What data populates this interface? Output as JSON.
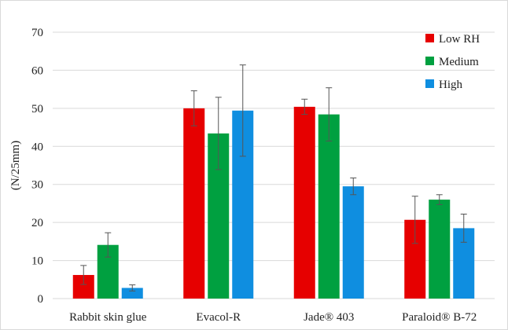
{
  "chart_data": {
    "type": "bar",
    "title": "",
    "xlabel": "",
    "ylabel": "(N/25mm)",
    "ylim": [
      0,
      70
    ],
    "yticks": [
      0,
      10,
      20,
      30,
      40,
      50,
      60,
      70
    ],
    "grid": true,
    "legend_position": "top-right",
    "categories": [
      "Rabbit skin glue",
      "Evacol-R",
      "Jade® 403",
      "Paraloid® B-72"
    ],
    "series": [
      {
        "name": "Low RH",
        "color": "#e60000",
        "values": [
          6.2,
          50.0,
          50.4,
          20.7
        ],
        "errors": [
          2.5,
          4.6,
          2.0,
          6.2
        ]
      },
      {
        "name": "Medium",
        "color": "#00a040",
        "values": [
          14.1,
          43.4,
          48.4,
          26.0
        ],
        "errors": [
          3.2,
          9.5,
          7.0,
          1.3
        ]
      },
      {
        "name": "High",
        "color": "#0f8ee0",
        "values": [
          2.8,
          49.4,
          29.5,
          18.5
        ],
        "errors": [
          0.8,
          12.0,
          2.2,
          3.7
        ]
      }
    ]
  }
}
